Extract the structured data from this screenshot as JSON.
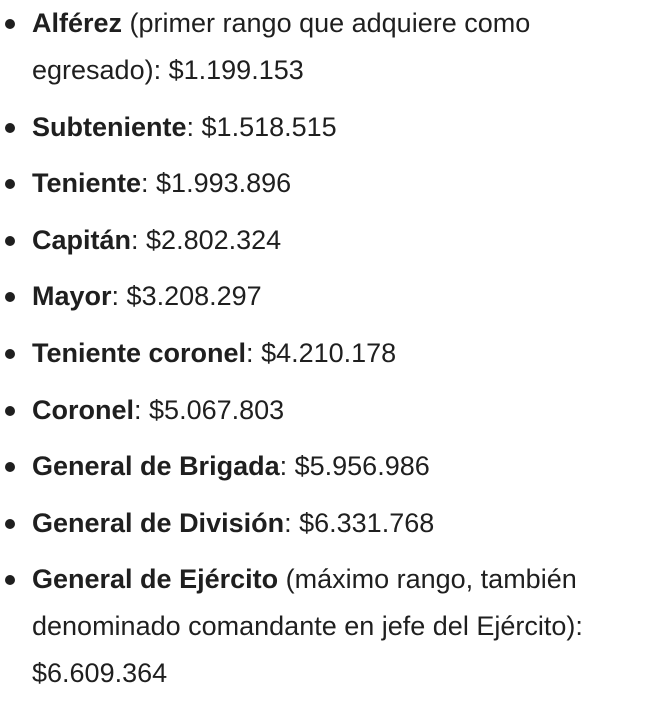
{
  "ranks": [
    {
      "name": "Alférez",
      "note": " (primer rango que adquiere como egresado)",
      "salary": "$1.199.153"
    },
    {
      "name": "Subteniente",
      "note": "",
      "salary": "$1.518.515"
    },
    {
      "name": "Teniente",
      "note": "",
      "salary": "$1.993.896"
    },
    {
      "name": "Capitán",
      "note": "",
      "salary": "$2.802.324"
    },
    {
      "name": "Mayor",
      "note": "",
      "salary": "$3.208.297"
    },
    {
      "name": "Teniente coronel",
      "note": "",
      "salary": "$4.210.178"
    },
    {
      "name": "Coronel",
      "note": "",
      "salary": "$5.067.803"
    },
    {
      "name": "General de Brigada",
      "note": "",
      "salary": "$5.956.986"
    },
    {
      "name": "General de División",
      "note": "",
      "salary": "$6.331.768"
    },
    {
      "name": "General de Ejército",
      "note": " (máximo rango, también denominado comandante en jefe del Ejército)",
      "salary": "$6.609.364"
    }
  ],
  "separator": ": "
}
